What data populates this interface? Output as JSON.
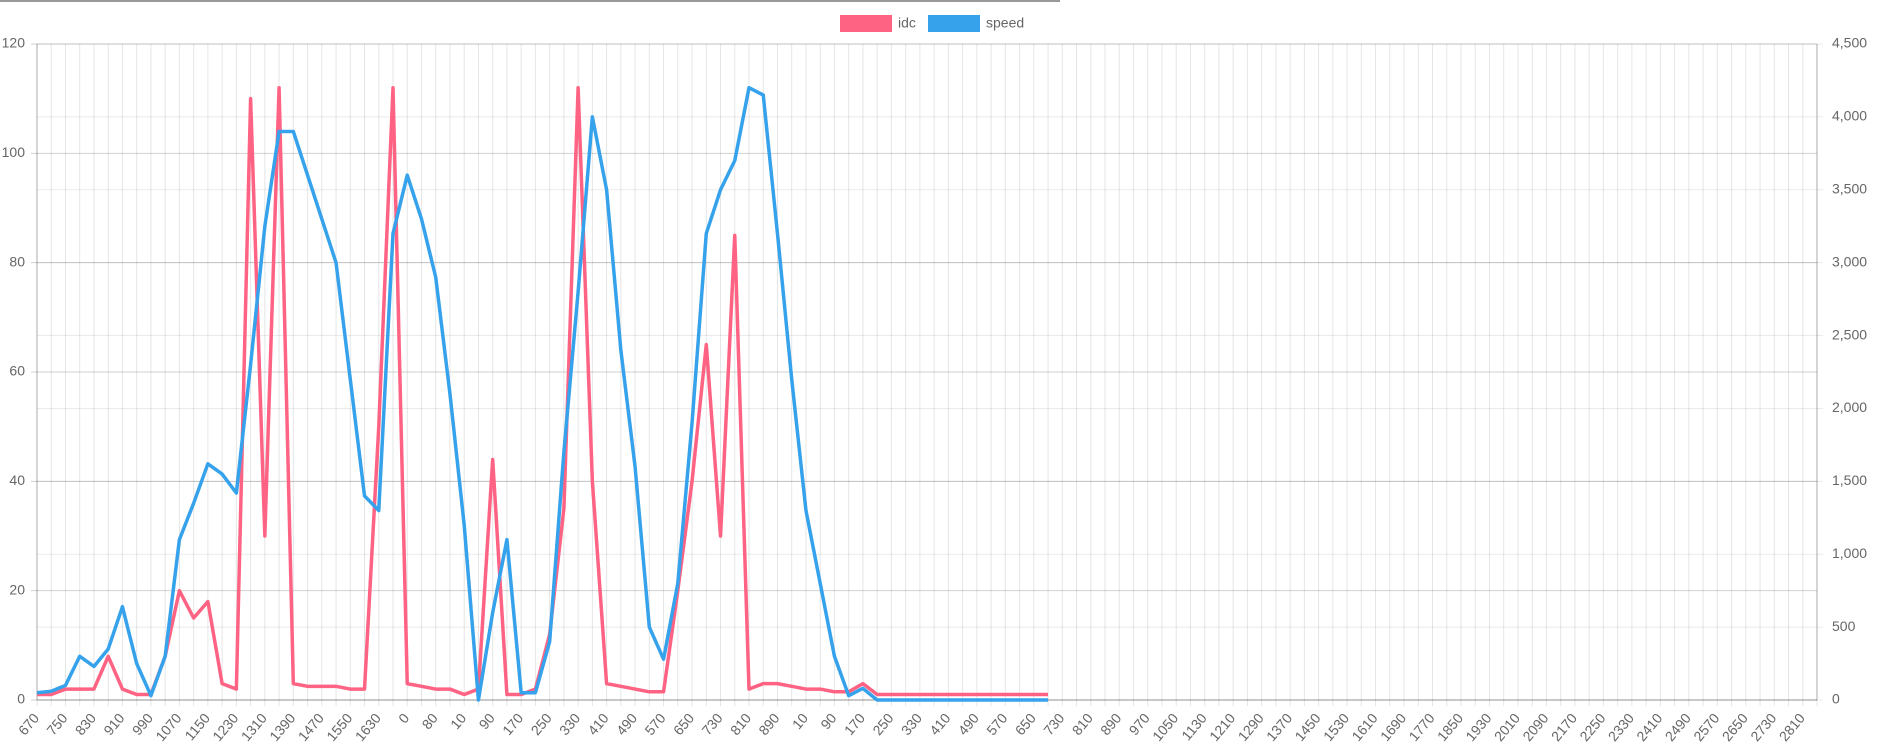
{
  "chart_data": {
    "type": "line",
    "categories": [
      "670",
      null,
      "750",
      null,
      "830",
      null,
      "910",
      null,
      "990",
      null,
      "1070",
      null,
      "1150",
      null,
      "1230",
      null,
      "1310",
      null,
      "1390",
      null,
      "1470",
      null,
      "1550",
      null,
      "1630",
      null,
      "0",
      null,
      "80",
      null,
      "10",
      null,
      "90",
      null,
      "170",
      null,
      "250",
      null,
      "330",
      null,
      "410",
      null,
      "490",
      null,
      "570",
      null,
      "650",
      null,
      "730",
      null,
      "810",
      null,
      "890",
      null,
      "10",
      null,
      "90",
      null,
      "170",
      null,
      "250",
      null,
      "330",
      null,
      "410",
      null,
      "490",
      null,
      "570",
      null,
      "650",
      null,
      "730",
      null,
      "810",
      null,
      "890",
      null,
      "970",
      null,
      "1050",
      null,
      "1130",
      null,
      "1210",
      null,
      "1290",
      null,
      "1370",
      null,
      "1450",
      null,
      "1530",
      null,
      "1610",
      null,
      "1690",
      null,
      "1770",
      null,
      "1850",
      null,
      "1930",
      null,
      "2010",
      null,
      "2090",
      null,
      "2170",
      null,
      "2250",
      null,
      "2330",
      null,
      "2410",
      null,
      "2490",
      null,
      "2570",
      null,
      "2650",
      null,
      "2730",
      null,
      "2810",
      null
    ],
    "series": [
      {
        "name": "idc",
        "color": "#ff6384",
        "axis": "y",
        "values": [
          1,
          1,
          2,
          2,
          2,
          8,
          2,
          1,
          1,
          8,
          20,
          15,
          18,
          3,
          2,
          110,
          30,
          112,
          3,
          2.5,
          2.5,
          2.5,
          2,
          2,
          50,
          112,
          3,
          2.5,
          2,
          2,
          1,
          2,
          44,
          1,
          1,
          2,
          12,
          35,
          112,
          40,
          3,
          2.5,
          2,
          1.5,
          1.5,
          20,
          40,
          65,
          30,
          85,
          2,
          3,
          3,
          2.5,
          2,
          2,
          1.5,
          1.5,
          3,
          1,
          1,
          1,
          1,
          1,
          1,
          1,
          1,
          1,
          1,
          1,
          1,
          1,
          null,
          null,
          null,
          null,
          null,
          null,
          null,
          null,
          null,
          null,
          null,
          null,
          null,
          null,
          null,
          null,
          null,
          null,
          null,
          null,
          null,
          null,
          null,
          null,
          null,
          null,
          null,
          null,
          null,
          null,
          null,
          null,
          null,
          null,
          null,
          null,
          null,
          null,
          null,
          null,
          null,
          null,
          null,
          null,
          null,
          null,
          null,
          null,
          null,
          null,
          null,
          null,
          null,
          null
        ]
      },
      {
        "name": "speed",
        "color": "#36a2eb",
        "axis": "y2",
        "values": [
          50,
          60,
          100,
          300,
          230,
          350,
          640,
          250,
          30,
          300,
          1100,
          1350,
          1620,
          1550,
          1420,
          2300,
          3250,
          3900,
          3900,
          3600,
          3300,
          3000,
          2200,
          1400,
          1300,
          3200,
          3600,
          3300,
          2900,
          2100,
          1200,
          0,
          600,
          1100,
          50,
          50,
          400,
          1700,
          2800,
          4000,
          3500,
          2400,
          1600,
          500,
          280,
          800,
          1900,
          3200,
          3500,
          3700,
          4200,
          4150,
          3200,
          2200,
          1300,
          800,
          300,
          30,
          80,
          0,
          0,
          0,
          0,
          0,
          0,
          0,
          0,
          0,
          0,
          0,
          0,
          0,
          null,
          null,
          null,
          null,
          null,
          null,
          null,
          null,
          null,
          null,
          null,
          null,
          null,
          null,
          null,
          null,
          null,
          null,
          null,
          null,
          null,
          null,
          null,
          null,
          null,
          null,
          null,
          null,
          null,
          null,
          null,
          null,
          null,
          null,
          null,
          null,
          null,
          null,
          null,
          null,
          null,
          null,
          null,
          null,
          null,
          null,
          null,
          null,
          null,
          null,
          null,
          null,
          null,
          null
        ]
      }
    ],
    "ylim": [
      0,
      120
    ],
    "yticks": [
      0,
      20,
      40,
      60,
      80,
      100,
      120
    ],
    "y2lim": [
      0,
      4500
    ],
    "y2ticks": [
      0,
      500,
      {
        "value": 1000,
        "label": "1,000"
      },
      {
        "value": 1500,
        "label": "1,500"
      },
      {
        "value": 2000,
        "label": "2,000"
      },
      {
        "value": 2500,
        "label": "2,500"
      },
      {
        "value": 3000,
        "label": "3,000"
      },
      {
        "value": 3500,
        "label": "3,500"
      },
      {
        "value": 4000,
        "label": "4,000"
      },
      {
        "value": 4500,
        "label": "4,500"
      }
    ],
    "grid": true,
    "legend": "top"
  }
}
